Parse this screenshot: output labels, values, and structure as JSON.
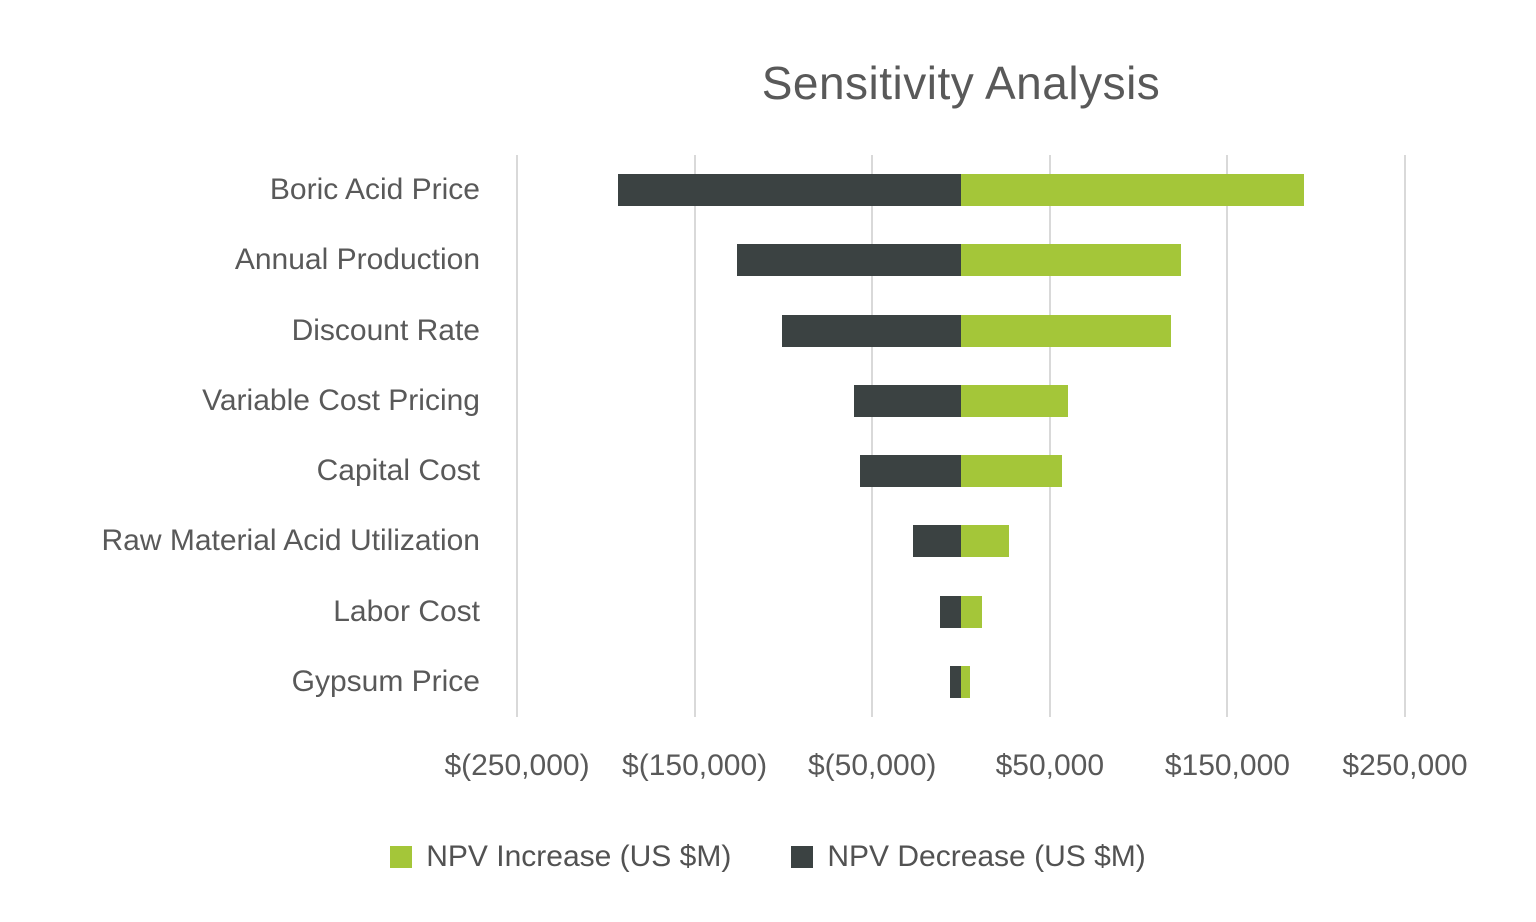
{
  "page": {
    "background_color": "#FFFFFF",
    "text_color": "#595959",
    "gridline_color": "#D9D9D9"
  },
  "chart_data": {
    "type": "bar",
    "subtype": "tornado",
    "orientation": "horizontal",
    "title": "Sensitivity Analysis",
    "categories": [
      "Boric Acid Price",
      "Annual Production",
      "Discount Rate",
      "Variable Cost Pricing",
      "Capital Cost",
      "Raw Material Acid Utilization",
      "Labor Cost",
      "Gypsum Price"
    ],
    "series": [
      {
        "name": "NPV Increase (US $M)",
        "color": "#A4C639",
        "values": [
          193000,
          124000,
          118000,
          60000,
          57000,
          27000,
          12000,
          5000
        ]
      },
      {
        "name": "NPV Decrease (US $M)",
        "color": "#3B4242",
        "values": [
          -193000,
          -126000,
          -101000,
          -60000,
          -57000,
          -27000,
          -12000,
          -6000
        ]
      }
    ],
    "x_axis": {
      "min": -250000,
      "max": 250000,
      "tick_step": 100000,
      "tick_labels": [
        "$(250,000)",
        "$(150,000)",
        "$(50,000)",
        "$50,000",
        "$150,000",
        "$250,000"
      ]
    },
    "grid": true,
    "legend_position": "bottom"
  }
}
